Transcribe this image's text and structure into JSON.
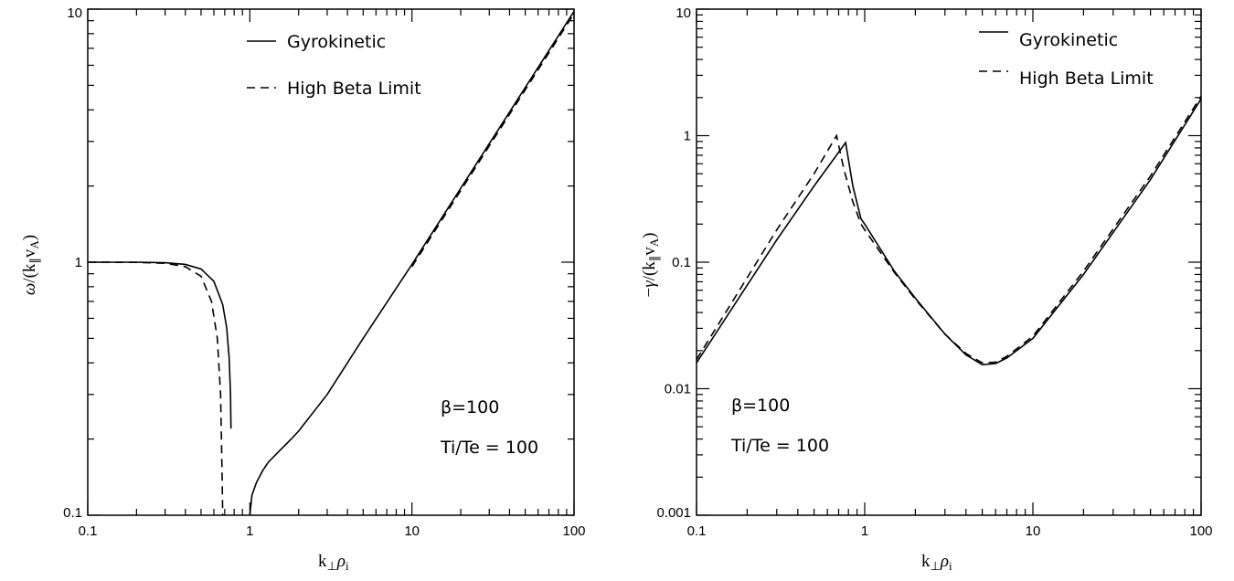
{
  "chart_data": [
    {
      "type": "line",
      "xlabel": "k⊥ρi",
      "ylabel": "ω/(k∥vA)",
      "xscale": "log",
      "yscale": "log",
      "xlim": [
        0.1,
        100
      ],
      "ylim": [
        0.1,
        10
      ],
      "xticklabels": [
        "0.1",
        "1",
        "10",
        "100"
      ],
      "yticklabels": [
        "0.1",
        "1",
        "10"
      ],
      "grid": false,
      "legend_position": "top-center",
      "legend": [
        "Gyrokinetic",
        "High Beta Limit"
      ],
      "annotations": [
        "β=100",
        "Ti/Te = 100"
      ],
      "series": [
        {
          "name": "Gyrokinetic",
          "style": "solid",
          "segments": [
            [
              [
                0.1,
                1.0
              ],
              [
                0.2,
                1.0
              ],
              [
                0.3,
                0.995
              ],
              [
                0.4,
                0.98
              ],
              [
                0.5,
                0.94
              ],
              [
                0.6,
                0.84
              ],
              [
                0.68,
                0.68
              ],
              [
                0.72,
                0.55
              ],
              [
                0.745,
                0.42
              ],
              [
                0.76,
                0.3
              ],
              [
                0.765,
                0.22
              ]
            ],
            [
              [
                1.0,
                0.1
              ],
              [
                1.03,
                0.12
              ],
              [
                1.1,
                0.135
              ],
              [
                1.2,
                0.15
              ],
              [
                1.3,
                0.162
              ],
              [
                1.5,
                0.178
              ],
              [
                1.8,
                0.2
              ],
              [
                2.0,
                0.215
              ],
              [
                3.0,
                0.3
              ],
              [
                5.0,
                0.5
              ],
              [
                10.0,
                0.98
              ],
              [
                20.0,
                1.96
              ],
              [
                50.0,
                4.9
              ],
              [
                100.0,
                9.8
              ]
            ]
          ]
        },
        {
          "name": "High Beta Limit",
          "style": "dashed",
          "segments": [
            [
              [
                0.1,
                1.0
              ],
              [
                0.2,
                0.998
              ],
              [
                0.3,
                0.99
              ],
              [
                0.4,
                0.96
              ],
              [
                0.5,
                0.88
              ],
              [
                0.58,
                0.7
              ],
              [
                0.63,
                0.5
              ],
              [
                0.66,
                0.3
              ],
              [
                0.675,
                0.14
              ],
              [
                0.68,
                0.1
              ]
            ],
            [
              [
                10.0,
                0.96
              ],
              [
                20.0,
                1.92
              ],
              [
                50.0,
                4.8
              ],
              [
                100.0,
                9.6
              ]
            ]
          ]
        }
      ]
    },
    {
      "type": "line",
      "xlabel": "k⊥ρi",
      "ylabel": "−γ/(k∥vA)",
      "xscale": "log",
      "yscale": "log",
      "xlim": [
        0.1,
        100
      ],
      "ylim": [
        0.001,
        10
      ],
      "xticklabels": [
        "0.1",
        "1",
        "10",
        "100"
      ],
      "yticklabels": [
        "0.001",
        "0.01",
        "0.1",
        "1",
        "10"
      ],
      "grid": false,
      "legend_position": "top-right",
      "legend": [
        "Gyrokinetic",
        "High Beta Limit"
      ],
      "annotations": [
        "β=100",
        "Ti/Te = 100"
      ],
      "series": [
        {
          "name": "Gyrokinetic",
          "style": "solid",
          "segments": [
            [
              [
                0.1,
                0.016
              ],
              [
                0.3,
                0.15
              ],
              [
                0.5,
                0.4
              ],
              [
                0.77,
                0.88
              ],
              [
                0.85,
                0.4
              ],
              [
                0.95,
                0.22
              ],
              [
                1.0,
                0.2
              ],
              [
                1.5,
                0.085
              ],
              [
                2.0,
                0.052
              ],
              [
                3.0,
                0.027
              ],
              [
                4.0,
                0.0185
              ],
              [
                5.0,
                0.0155
              ],
              [
                6.0,
                0.0158
              ],
              [
                7.0,
                0.0175
              ],
              [
                10.0,
                0.025
              ],
              [
                20.0,
                0.08
              ],
              [
                50.0,
                0.45
              ],
              [
                100.0,
                1.95
              ]
            ]
          ]
        },
        {
          "name": "High Beta Limit",
          "style": "dashed",
          "segments": [
            [
              [
                0.1,
                0.017
              ],
              [
                0.3,
                0.18
              ],
              [
                0.5,
                0.5
              ],
              [
                0.68,
                1.0
              ],
              [
                0.75,
                0.55
              ],
              [
                0.85,
                0.3
              ],
              [
                0.95,
                0.2
              ],
              [
                1.0,
                0.18
              ],
              [
                1.5,
                0.083
              ],
              [
                2.0,
                0.051
              ],
              [
                3.0,
                0.027
              ],
              [
                4.0,
                0.019
              ],
              [
                5.0,
                0.016
              ],
              [
                6.0,
                0.0162
              ],
              [
                7.0,
                0.018
              ],
              [
                10.0,
                0.026
              ],
              [
                20.0,
                0.085
              ],
              [
                50.0,
                0.48
              ],
              [
                100.0,
                2.05
              ]
            ]
          ]
        }
      ]
    }
  ]
}
